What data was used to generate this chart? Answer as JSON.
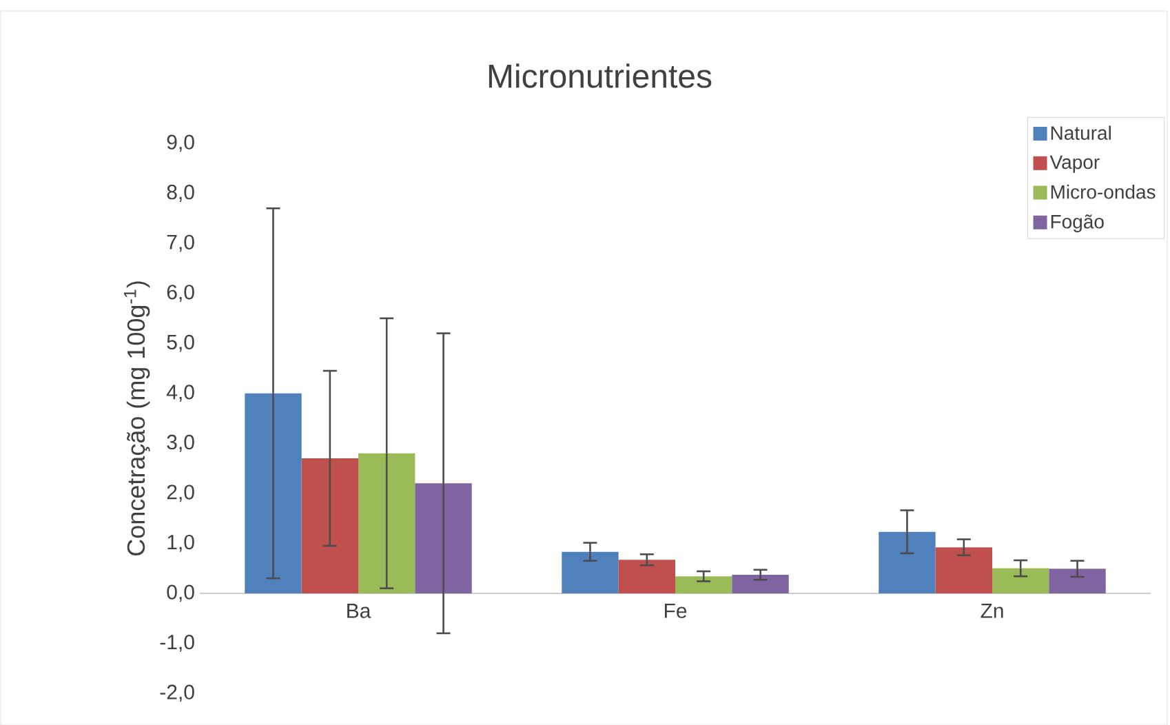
{
  "chart_data": {
    "type": "bar",
    "title": "Micronutrientes",
    "ylabel": "Concetração (mg 100g$^{-1}$)",
    "categories": [
      "Ba",
      "Fe",
      "Zn"
    ],
    "series": [
      {
        "name": "Natural",
        "color": "#4f81bd",
        "values": [
          4.0,
          0.83,
          1.23
        ],
        "errors": [
          3.7,
          0.18,
          0.43
        ]
      },
      {
        "name": "Vapor",
        "color": "#c0504d",
        "values": [
          2.7,
          0.67,
          0.92
        ],
        "errors": [
          1.75,
          0.11,
          0.16
        ]
      },
      {
        "name": "Micro-ondas",
        "color": "#9bbb59",
        "values": [
          2.8,
          0.34,
          0.5
        ],
        "errors": [
          2.7,
          0.1,
          0.16
        ]
      },
      {
        "name": "Fogão",
        "color": "#8064a2",
        "values": [
          2.2,
          0.37,
          0.49
        ],
        "errors": [
          3.0,
          0.1,
          0.16
        ]
      }
    ],
    "ylim": [
      -2,
      9
    ],
    "yticks": [
      {
        "value": -2,
        "label": "-2,0"
      },
      {
        "value": -1,
        "label": "-1,0"
      },
      {
        "value": 0,
        "label": "0,0"
      },
      {
        "value": 1,
        "label": "1,0"
      },
      {
        "value": 2,
        "label": "2,0"
      },
      {
        "value": 3,
        "label": "3,0"
      },
      {
        "value": 4,
        "label": "4,0"
      },
      {
        "value": 5,
        "label": "5,0"
      },
      {
        "value": 6,
        "label": "6,0"
      },
      {
        "value": 7,
        "label": "7,0"
      },
      {
        "value": 8,
        "label": "8,0"
      },
      {
        "value": 9,
        "label": "9,0"
      }
    ],
    "grid": false,
    "legend": "top right"
  }
}
